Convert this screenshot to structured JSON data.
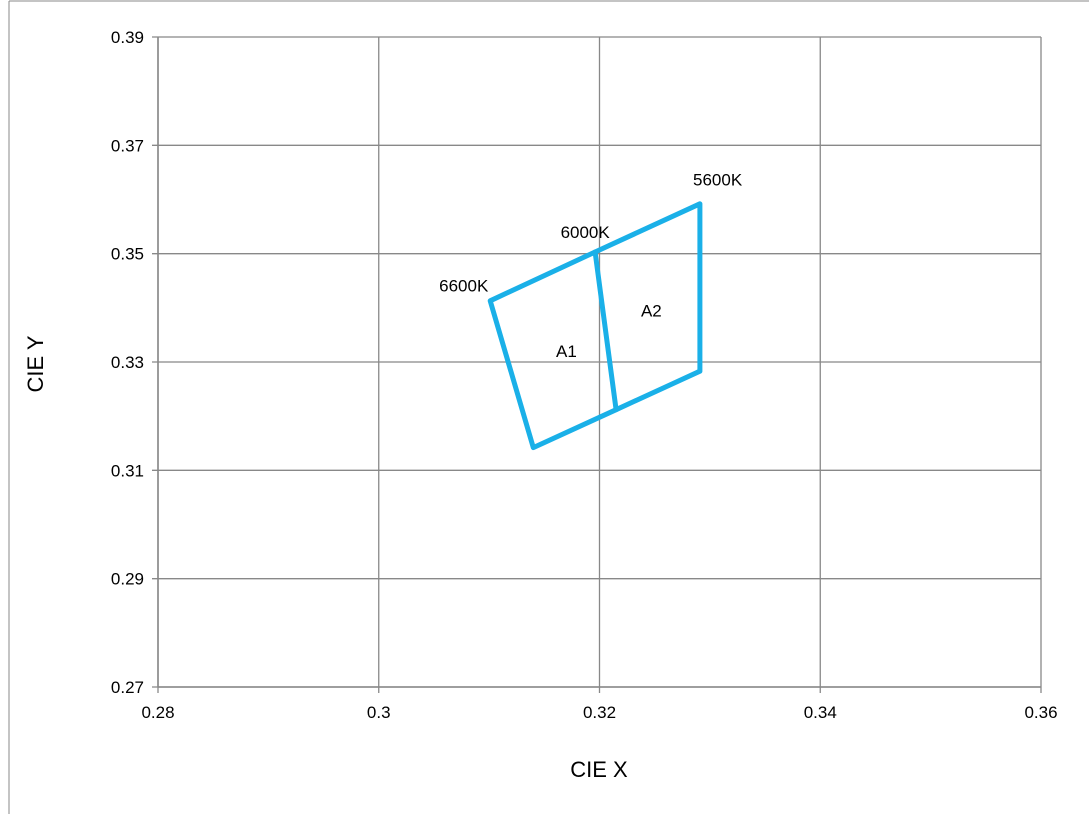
{
  "chart_data": {
    "type": "line",
    "title": "",
    "xlabel": "CIE X",
    "ylabel": "CIE Y",
    "xlim": [
      0.28,
      0.36
    ],
    "ylim": [
      0.27,
      0.39
    ],
    "x_ticks": [
      0.28,
      0.3,
      0.32,
      0.34,
      0.36
    ],
    "x_tick_labels": [
      "0.28",
      "0.3",
      "0.32",
      "0.34",
      "0.36"
    ],
    "y_ticks": [
      0.27,
      0.29,
      0.31,
      0.33,
      0.35,
      0.37,
      0.39
    ],
    "y_tick_labels": [
      "0.27",
      "0.29",
      "0.31",
      "0.33",
      "0.35",
      "0.37",
      "0.39"
    ],
    "grid": true,
    "series_color": "#1ab0e8",
    "series": [
      {
        "points": [
          {
            "x": 0.3101,
            "y": 0.3413
          },
          {
            "x": 0.3196,
            "y": 0.3503
          },
          {
            "x": 0.3291,
            "y": 0.3592
          },
          {
            "x": 0.3291,
            "y": 0.3283
          },
          {
            "x": 0.3215,
            "y": 0.3212
          },
          {
            "x": 0.314,
            "y": 0.3142
          },
          {
            "x": 0.3101,
            "y": 0.3413
          }
        ]
      },
      {
        "points": [
          {
            "x": 0.3196,
            "y": 0.3503
          },
          {
            "x": 0.3215,
            "y": 0.3212
          }
        ]
      }
    ],
    "annotations": [
      {
        "text": "6600K",
        "x": 0.3077,
        "y": 0.343
      },
      {
        "text": "6000K",
        "x": 0.3187,
        "y": 0.3529
      },
      {
        "text": "5600K",
        "x": 0.3307,
        "y": 0.3626
      },
      {
        "text": "A1",
        "x": 0.317,
        "y": 0.3309
      },
      {
        "text": "A2",
        "x": 0.3247,
        "y": 0.3384
      }
    ]
  }
}
